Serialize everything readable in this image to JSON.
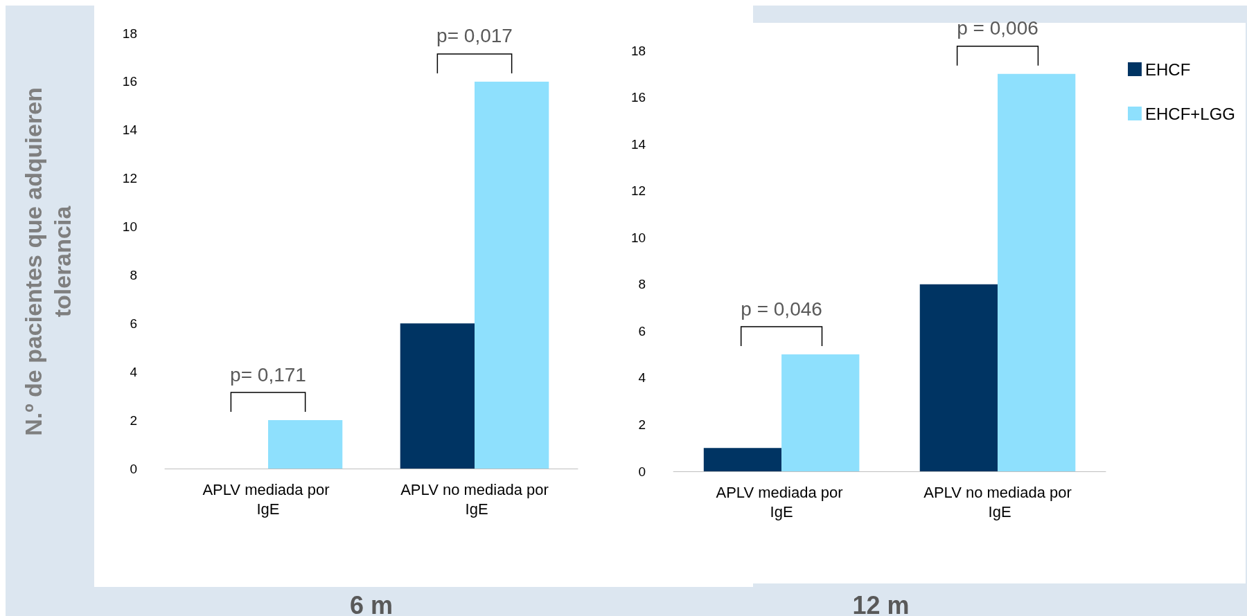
{
  "chart_data": [
    {
      "type": "bar",
      "ylabel": "N.º de pacientes que adquieren tolerancia",
      "xlabel": "6 m",
      "categories": [
        "APLV mediada por IgE",
        "APLV no mediada por IgE"
      ],
      "series": [
        {
          "color": "#003463",
          "values": [
            0,
            6
          ]
        },
        {
          "color": "#8ee0fd",
          "values": [
            2,
            16
          ]
        }
      ],
      "ylim": [
        0,
        18
      ],
      "yticks": [
        0,
        2,
        4,
        6,
        8,
        10,
        12,
        14,
        16,
        18
      ],
      "legend": false,
      "annotations": [
        "p= 0,171",
        "p= 0,017"
      ]
    },
    {
      "type": "bar",
      "xlabel": "12 m",
      "categories": [
        "APLV mediada por IgE",
        "APLV no mediada por IgE"
      ],
      "series": [
        {
          "name": "EHCF",
          "color": "#003463",
          "values": [
            1,
            8
          ]
        },
        {
          "name": "EHCF+LGG",
          "color": "#8ee0fd",
          "values": [
            5,
            17
          ]
        }
      ],
      "ylim": [
        0,
        18
      ],
      "yticks": [
        0,
        2,
        4,
        6,
        8,
        10,
        12,
        14,
        16,
        18
      ],
      "legend": "top right",
      "annotations": [
        "p = 0,046",
        "p = 0,006"
      ]
    }
  ]
}
